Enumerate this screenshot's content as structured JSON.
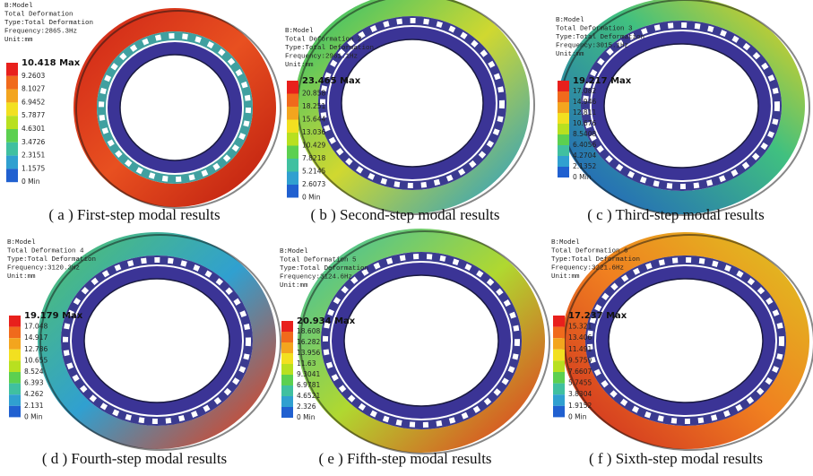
{
  "panels": [
    {
      "header": [
        "B:Model",
        "Total Deformation",
        "Type:Total Deformation",
        "Frequency:2865.3Hz",
        "Unit:mm"
      ],
      "legend": [
        "10.418 Max",
        "9.2603",
        "8.1027",
        "6.9452",
        "5.7877",
        "4.6301",
        "3.4726",
        "2.3151",
        "1.1575",
        "0 Min"
      ],
      "caption": "( a ) First-step modal results"
    },
    {
      "header": [
        "B:Model",
        "Total Deformation 2",
        "Type:Total Deformation",
        "Frequency:2961.1Hz",
        "Unit:mm"
      ],
      "legend": [
        "23.465 Max",
        "20.858",
        "18.251",
        "15.644",
        "13.036",
        "10.429",
        "7.8218",
        "5.2145",
        "2.6073",
        "0 Min"
      ],
      "caption": "( b ) Second-step modal results"
    },
    {
      "header": [
        "B:Model",
        "Total Deformation 3",
        "Type:Total Deformation",
        "Frequency:3015.1Hz",
        "Unit:mm"
      ],
      "legend": [
        "19.217 Max",
        "17.082",
        "14.946",
        "12.811",
        "10.676",
        "8.5408",
        "6.4056",
        "4.2704",
        "2.1352",
        "0 Min"
      ],
      "caption": "( c ) Third-step modal results"
    },
    {
      "header": [
        "B:Model",
        "Total Deformation 4",
        "Type:Total Deformation",
        "Frequency:3120.3Hz",
        "Unit:mm"
      ],
      "legend": [
        "19.179 Max",
        "17.048",
        "14.917",
        "12.786",
        "10.655",
        "8.524",
        "6.393",
        "4.262",
        "2.131",
        "0 Min"
      ],
      "caption": "( d ) Fourth-step modal results"
    },
    {
      "header": [
        "B:Model",
        "Total Deformation 5",
        "Type:Total Deformation",
        "Frequency:3124.6Hz",
        "Unit:mm"
      ],
      "legend": [
        "20.934 Max",
        "18.608",
        "16.282",
        "13.956",
        "11.63",
        "9.3041",
        "6.9781",
        "4.6521",
        "2.326",
        "0 Min"
      ],
      "caption": "( e ) Fifth-step modal results"
    },
    {
      "header": [
        "B:Model",
        "Total Deformation 6",
        "Type:Total Deformation",
        "Frequency:3221.6Hz",
        "Unit:mm"
      ],
      "legend": [
        "17.237 Max",
        "15.321",
        "13.406",
        "11.491",
        "9.5759",
        "7.6607",
        "5.7455",
        "3.8304",
        "1.9152",
        "0 Min"
      ],
      "caption": "( f ) Sixth-step modal results"
    }
  ]
}
